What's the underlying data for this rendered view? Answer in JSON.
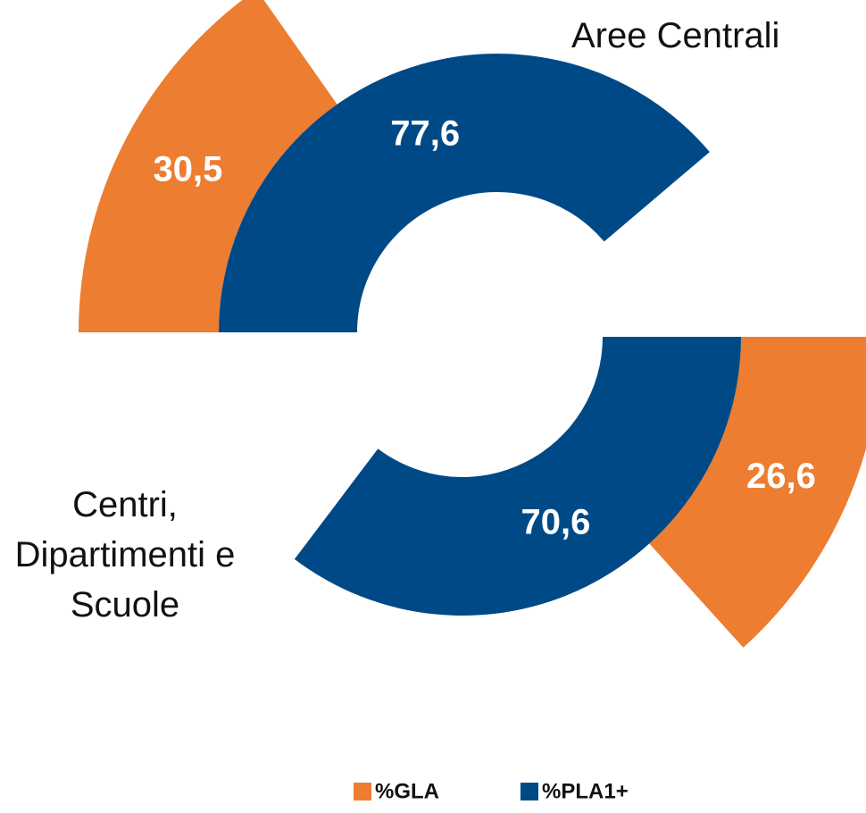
{
  "chart_data": {
    "type": "radial_bar",
    "categories": [
      "Aree Centrali",
      "Centri, Dipartimenti e Scuole"
    ],
    "ylim": [
      0,
      100
    ],
    "series": [
      {
        "name": "%GLA",
        "color": "#ed7d31",
        "values": [
          30.5,
          26.6
        ],
        "value_labels": [
          "30,5",
          "26,6"
        ]
      },
      {
        "name": "%PLA1+",
        "color": "#004987",
        "values": [
          77.6,
          70.6
        ],
        "value_labels": [
          "77,6",
          "70,6"
        ]
      }
    ]
  }
}
